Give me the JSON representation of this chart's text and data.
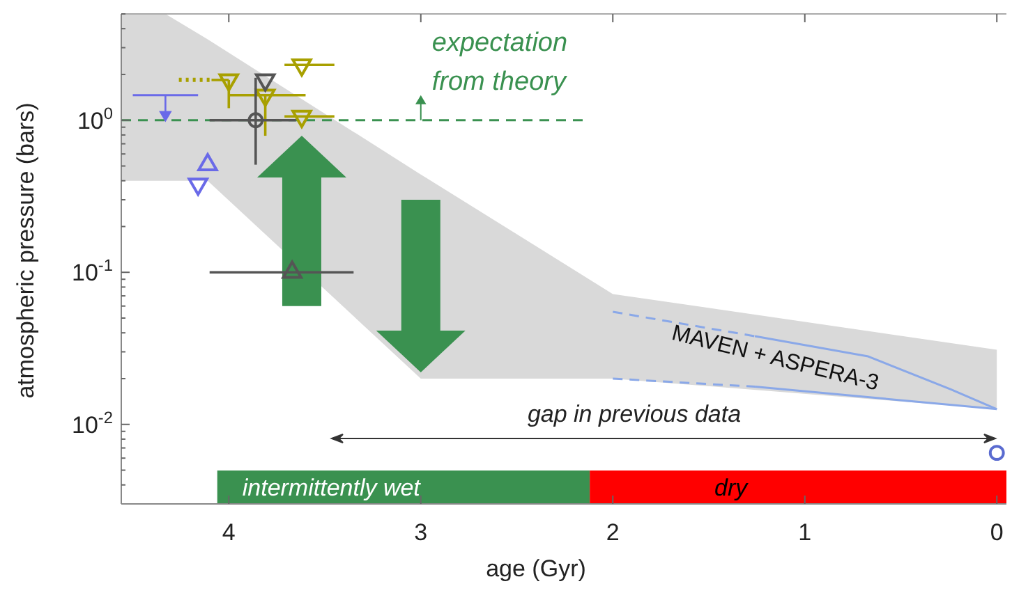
{
  "chart_data": {
    "type": "scatter",
    "xlabel": "age (Gyr)",
    "ylabel": "atmospheric pressure (bars)",
    "xlim": [
      4.56,
      -0.05
    ],
    "xticks": [
      4,
      3,
      2,
      1,
      0
    ],
    "ylim": [
      0.003,
      5
    ],
    "log": "y",
    "yticks": [
      {
        "value": 0.004,
        "label": null
      },
      {
        "value": 0.005,
        "label": null
      },
      {
        "value": 0.006,
        "label": null
      },
      {
        "value": 0.007,
        "label": null
      },
      {
        "value": 0.008,
        "label": null
      },
      {
        "value": 0.009,
        "label": null
      },
      {
        "value": 0.01,
        "label": "10$^{-2}$"
      },
      {
        "value": 0.02,
        "label": null
      },
      {
        "value": 0.03,
        "label": null
      },
      {
        "value": 0.04,
        "label": null
      },
      {
        "value": 0.05,
        "label": null
      },
      {
        "value": 0.06,
        "label": null
      },
      {
        "value": 0.07,
        "label": null
      },
      {
        "value": 0.08,
        "label": null
      },
      {
        "value": 0.09,
        "label": null
      },
      {
        "value": 0.1,
        "label": "10$^{-1}$"
      },
      {
        "value": 0.2,
        "label": null
      },
      {
        "value": 0.3,
        "label": null
      },
      {
        "value": 0.4,
        "label": null
      },
      {
        "value": 0.5,
        "label": null
      },
      {
        "value": 0.6,
        "label": null
      },
      {
        "value": 0.7,
        "label": null
      },
      {
        "value": 0.8,
        "label": null
      },
      {
        "value": 0.9,
        "label": null
      },
      {
        "value": 1,
        "label": "10$^{0}$"
      },
      {
        "value": 2,
        "label": null
      },
      {
        "value": 3,
        "label": null
      },
      {
        "value": 4,
        "label": null
      },
      {
        "value": 5,
        "label": null
      }
    ],
    "series": [
      {
        "type": "line",
        "color": "#d9d9d9",
        "x": [
          4.56,
          4.33,
          4.11,
          3,
          2,
          0
        ],
        "values": [
          null,
          null,
          null,
          null,
          null,
          null
        ],
        "upper": [
          5,
          5,
          3.4,
          0.44,
          0.072,
          0.031
        ],
        "lower": [
          0.4,
          0.4,
          0.4,
          0.02,
          0.02,
          0.0126
        ]
      },
      {
        "type": "line",
        "color": "#8aa8e8",
        "line_style": "dashed",
        "x": [
          2,
          1.26
        ],
        "values": [
          0.055,
          0.038
        ]
      },
      {
        "type": "line",
        "color": "#8aa8e8",
        "line_style": "solid",
        "x": [
          1.26,
          0.67,
          0.24,
          0
        ],
        "values": [
          0.038,
          0.028,
          0.017,
          0.0126
        ]
      },
      {
        "type": "line",
        "color": "#8aa8e8",
        "line_style": "dashed",
        "x": [
          2,
          1.26
        ],
        "values": [
          0.02,
          0.0177
        ]
      },
      {
        "type": "line",
        "color": "#8aa8e8",
        "line_style": "solid",
        "x": [
          1.26,
          0
        ],
        "values": [
          0.0177,
          0.0126
        ]
      },
      {
        "type": "line",
        "color": "#3a9150",
        "line_style": "dashed",
        "x": [
          4.56,
          2.14
        ],
        "values": [
          1,
          1
        ]
      },
      {
        "type": "line",
        "color": "#a8a000",
        "line_style": "dotted",
        "x": [
          4.26,
          4.1
        ],
        "values": [
          1.84,
          1.84
        ]
      },
      {
        "type": "line",
        "color": "#6a6ae8",
        "line_style": "solid",
        "x": [
          4.5,
          4.16
        ],
        "values": [
          1.46,
          1.46
        ]
      },
      {
        "color": "#6a6ae8",
        "marker": "triangle",
        "x": [
          4.11
        ],
        "values": [
          0.51
        ]
      },
      {
        "color": "#6a6ae8",
        "marker": "triangle-down",
        "x": [
          4.16
        ],
        "values": [
          0.38
        ]
      },
      {
        "color": "#a8a000",
        "marker": "triangle-down",
        "x": [
          4.0,
          3.81,
          3.62,
          3.62
        ],
        "values": [
          1.84,
          1.46,
          2.31,
          1.06
        ],
        "xerrors": [
          [
            4.0,
            4.09
          ],
          [
            3.6,
            4.0
          ],
          [
            3.45,
            3.71
          ],
          [
            3.45,
            3.71
          ]
        ],
        "errors": [
          [
            1.2,
            1.84
          ],
          [
            0.79,
            1.46
          ],
          null,
          null
        ]
      },
      {
        "color": "#555555",
        "marker": "triangle-down",
        "x": [
          3.81
        ],
        "values": [
          1.84
        ]
      },
      {
        "color": "#555555",
        "marker": "circle",
        "x": [
          3.86
        ],
        "values": [
          1.0
        ],
        "xerrors": [
          [
            3.65,
            4.1
          ]
        ],
        "errors": [
          [
            0.51,
            1.9
          ]
        ]
      },
      {
        "color": "#555555",
        "marker": "triangle",
        "x": [
          3.67
        ],
        "values": [
          0.1
        ],
        "xerrors": [
          [
            3.35,
            4.1
          ]
        ]
      },
      {
        "color": "#5a6bd0",
        "marker": "circle",
        "x": [
          0
        ],
        "values": [
          0.0065
        ]
      }
    ],
    "bands": [
      {
        "axis": "x",
        "from": 4.06,
        "to": 2.12,
        "label": "intermittently wet",
        "color": "#3a9150"
      },
      {
        "axis": "x",
        "from": 2.12,
        "to": -0.05,
        "label": "dry",
        "color": "#ff0000"
      }
    ],
    "annotations": [
      {
        "text": "expectation from theory",
        "x": 3.0,
        "y": 1
      },
      "gap in previous data",
      "MAVEN + ASPERA-3"
    ]
  }
}
